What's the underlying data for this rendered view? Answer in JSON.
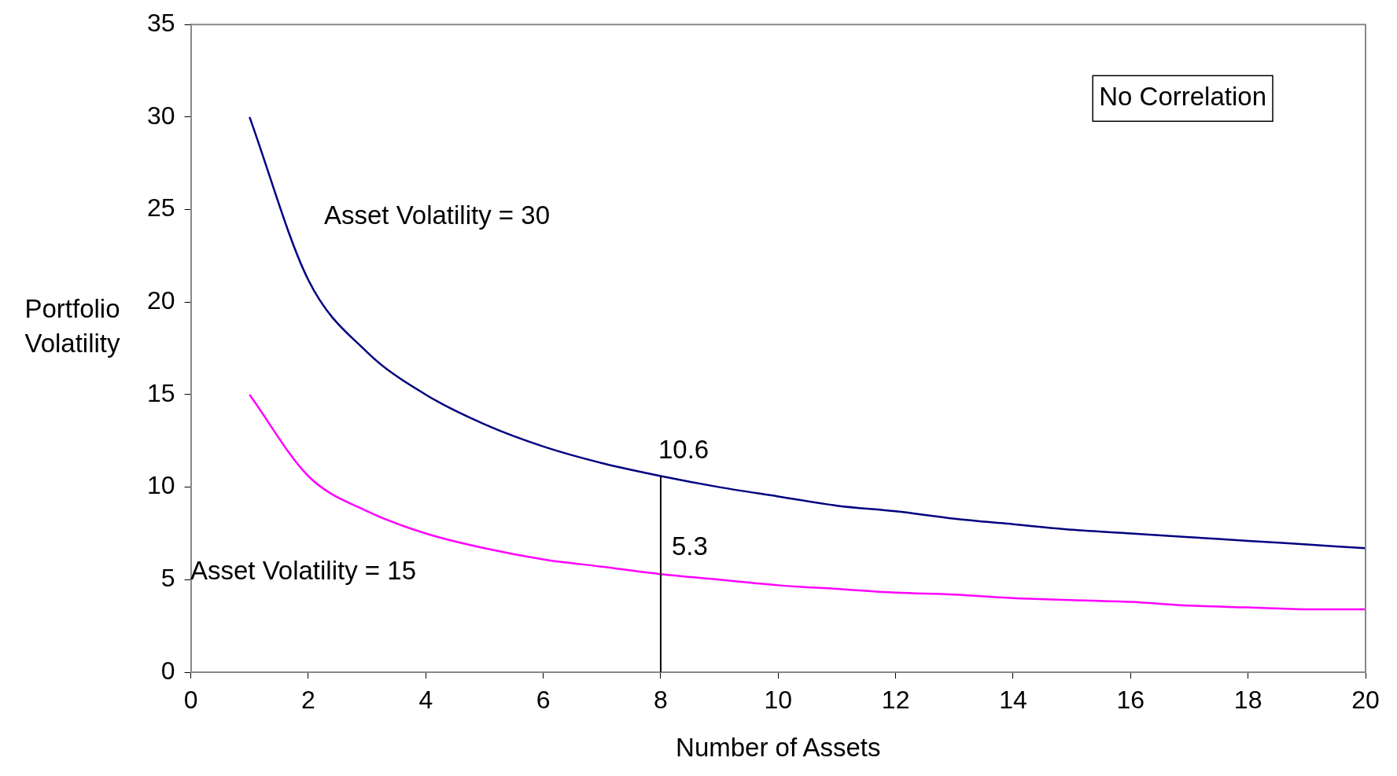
{
  "chart_data": {
    "type": "line",
    "xlabel": "Number of Assets",
    "ylabel": "Portfolio Volatility",
    "x": [
      1,
      2,
      3,
      4,
      5,
      6,
      7,
      8,
      9,
      10,
      11,
      12,
      13,
      14,
      15,
      16,
      17,
      18,
      19,
      20
    ],
    "series": [
      {
        "name": "Asset Volatility = 30",
        "color": "#000080",
        "values": [
          30,
          21.2,
          17.3,
          15,
          13.4,
          12.2,
          11.3,
          10.6,
          10,
          9.5,
          9,
          8.7,
          8.3,
          8,
          7.7,
          7.5,
          7.3,
          7.1,
          6.9,
          6.7
        ]
      },
      {
        "name": "Asset Volatility = 15",
        "color": "#ff00ff",
        "values": [
          15,
          10.6,
          8.7,
          7.5,
          6.7,
          6.1,
          5.7,
          5.3,
          5,
          4.7,
          4.5,
          4.3,
          4.2,
          4,
          3.9,
          3.8,
          3.6,
          3.5,
          3.4,
          3.4
        ]
      }
    ],
    "xlim": [
      0,
      20
    ],
    "xticks": [
      0,
      2,
      4,
      6,
      8,
      10,
      12,
      14,
      16,
      18,
      20
    ],
    "ylim": [
      0,
      35
    ],
    "yticks": [
      0,
      5,
      10,
      15,
      20,
      25,
      30,
      35
    ],
    "grid": false,
    "legend": false,
    "marker": "none",
    "line_style": "solid",
    "ref_lines": [
      {
        "axis": "x",
        "value": 8,
        "color": "#000000"
      }
    ],
    "annotations": [
      "No Correlation",
      {
        "text": "10.6",
        "x": 8,
        "y": 10.6
      },
      {
        "text": "5.3",
        "x": 8,
        "y": 5.3
      }
    ]
  }
}
